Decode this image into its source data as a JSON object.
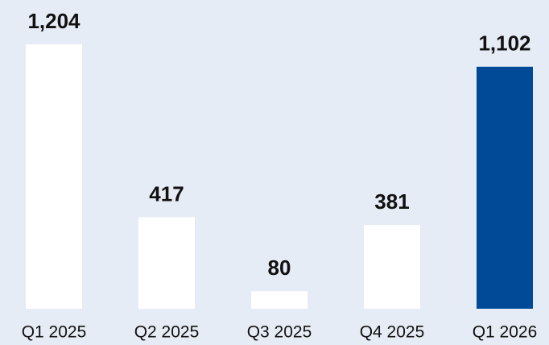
{
  "chart_data": {
    "type": "bar",
    "categories": [
      "Q1 2025",
      "Q2 2025",
      "Q3 2025",
      "Q4 2025",
      "Q1 2026"
    ],
    "values": [
      1204,
      417,
      80,
      381,
      1102
    ],
    "value_labels": [
      "1,204",
      "417",
      "80",
      "381",
      "1,102"
    ],
    "colors": [
      "#ffffff",
      "#ffffff",
      "#ffffff",
      "#ffffff",
      "#004a97"
    ]
  }
}
